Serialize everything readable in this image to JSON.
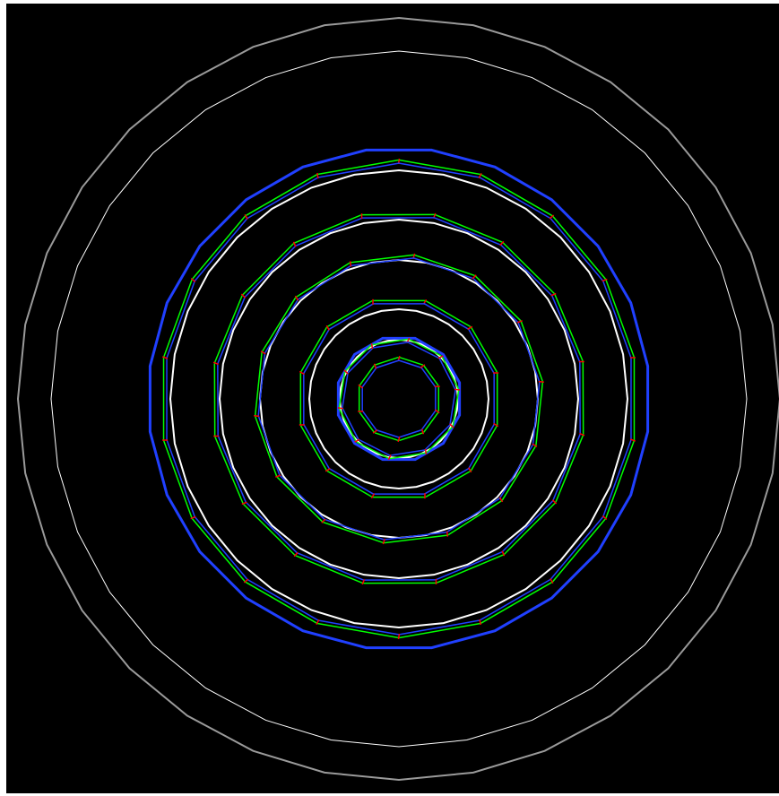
{
  "scene": {
    "background": "#000000",
    "colors": {
      "outer_ring": "#9a9a9a",
      "white_ring": "#ffffff",
      "blue_ring": "#2040ff",
      "green_ring": "#00ff00",
      "red_tick": "#ff0000"
    },
    "gray_rings": [
      {
        "name": "outer-gray-ring",
        "sides": 32,
        "rotation_deg": 0
      }
    ],
    "white_rings": [
      {
        "name": "white-ring-5",
        "sides": 32,
        "rotation_deg": 0
      },
      {
        "name": "white-ring-4",
        "sides": 32,
        "rotation_deg": 0
      },
      {
        "name": "white-ring-3",
        "sides": 32,
        "rotation_deg": 0
      },
      {
        "name": "white-ring-2",
        "sides": 32,
        "rotation_deg": 0
      },
      {
        "name": "white-ring-1",
        "sides": 32,
        "rotation_deg": 0
      },
      {
        "name": "white-ring-0",
        "sides": 32,
        "rotation_deg": 0
      }
    ],
    "blue_rings": [
      {
        "name": "blue-ring-outer",
        "sides": 24,
        "rotation_deg": 7.5
      },
      {
        "name": "blue-ring-inner",
        "sides": 12,
        "rotation_deg": 15
      }
    ],
    "segmented_rings": [
      {
        "name": "segmented-ring-5",
        "sides": 18,
        "rotation_deg": 0
      },
      {
        "name": "segmented-ring-4",
        "sides": 16,
        "rotation_deg": 11
      },
      {
        "name": "segmented-ring-3",
        "sides": 14,
        "rotation_deg": 6
      },
      {
        "name": "segmented-ring-2",
        "sides": 12,
        "rotation_deg": 15
      },
      {
        "name": "segmented-ring-1",
        "sides": 10,
        "rotation_deg": 9
      },
      {
        "name": "segmented-ring-0",
        "sides": 10,
        "rotation_deg": 0
      }
    ]
  }
}
